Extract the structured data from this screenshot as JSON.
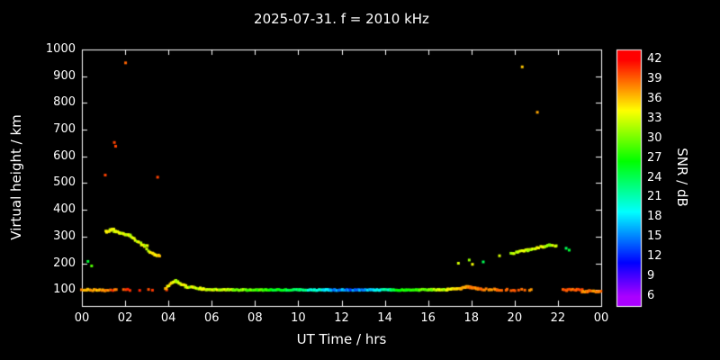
{
  "chart_data": {
    "type": "scatter",
    "title": "2025-07-31. f = 2010 kHz",
    "xlabel": "UT Time / hrs",
    "ylabel": "Virtual height / km",
    "xlim": [
      0,
      24
    ],
    "ylim": [
      40,
      1000
    ],
    "grid": false,
    "background": "#000000",
    "frame_color": "#ffffff",
    "text_color": "#ffffff",
    "xtick_values": [
      0,
      2,
      4,
      6,
      8,
      10,
      12,
      14,
      16,
      18,
      20,
      22,
      24
    ],
    "xtick_labels": [
      "00",
      "02",
      "04",
      "06",
      "08",
      "10",
      "12",
      "14",
      "16",
      "18",
      "20",
      "22",
      "00"
    ],
    "ytick_values": [
      100,
      200,
      300,
      400,
      500,
      600,
      700,
      800,
      900,
      1000
    ],
    "colorbar": {
      "label": "SNR / dB",
      "min": 4.5,
      "max": 43.5,
      "tick_values": [
        6,
        9,
        12,
        15,
        18,
        21,
        24,
        27,
        30,
        33,
        36,
        39,
        42
      ]
    },
    "segment_fields": [
      "t0",
      "t1",
      "h0",
      "h1",
      "snr0",
      "snr1",
      "step_hrs",
      "h_jitter_km",
      "snr_jitter_db"
    ],
    "series_segments": [
      [
        0.0,
        1.05,
        100,
        100,
        37,
        37,
        0.07,
        3,
        2
      ],
      [
        1.05,
        1.6,
        100,
        100,
        39,
        39,
        0.09,
        3,
        2
      ],
      [
        1.9,
        2.25,
        100,
        100,
        40,
        40,
        0.12,
        3,
        1
      ],
      [
        2.6,
        3.8,
        100,
        100,
        40,
        40,
        0.45,
        2,
        1
      ],
      [
        3.85,
        4.15,
        103,
        126,
        35,
        34,
        0.06,
        3,
        2
      ],
      [
        4.15,
        4.35,
        129,
        135,
        34,
        34,
        0.05,
        3,
        2
      ],
      [
        4.35,
        4.8,
        133,
        115,
        33,
        33,
        0.05,
        3,
        2
      ],
      [
        4.8,
        5.6,
        112,
        104,
        33,
        33,
        0.06,
        3,
        2
      ],
      [
        5.6,
        7.0,
        102,
        101,
        34,
        32,
        0.06,
        2,
        2
      ],
      [
        7.0,
        8.5,
        100,
        100,
        31,
        28,
        0.06,
        2,
        2
      ],
      [
        8.5,
        10.0,
        100,
        100,
        27,
        24,
        0.06,
        2,
        2
      ],
      [
        10.0,
        11.3,
        100,
        100,
        23,
        19,
        0.06,
        2,
        2
      ],
      [
        11.3,
        12.8,
        100,
        100,
        17,
        14,
        0.06,
        2,
        2
      ],
      [
        12.8,
        14.3,
        100,
        100,
        16,
        22,
        0.06,
        2,
        2
      ],
      [
        14.3,
        15.6,
        100,
        100,
        24,
        29,
        0.06,
        2,
        2
      ],
      [
        15.6,
        16.9,
        101,
        101,
        30,
        33,
        0.06,
        2,
        2
      ],
      [
        16.9,
        17.55,
        103,
        104,
        35,
        35,
        0.06,
        2,
        2
      ],
      [
        17.55,
        17.85,
        106,
        114,
        37,
        37,
        0.05,
        3,
        1
      ],
      [
        17.85,
        18.3,
        112,
        104,
        38,
        38,
        0.05,
        3,
        1
      ],
      [
        18.3,
        19.2,
        102,
        101,
        38,
        38,
        0.08,
        3,
        1
      ],
      [
        19.2,
        20.3,
        100,
        100,
        39,
        39,
        0.12,
        3,
        1
      ],
      [
        20.5,
        20.8,
        100,
        100,
        38,
        38,
        0.15,
        2,
        1
      ],
      [
        22.25,
        23.1,
        100,
        100,
        39,
        39,
        0.07,
        3,
        1
      ],
      [
        23.1,
        24.0,
        95,
        95,
        38,
        38,
        0.06,
        3,
        1
      ],
      [
        1.1,
        1.5,
        318,
        328,
        34,
        34,
        0.05,
        4,
        2
      ],
      [
        1.5,
        2.25,
        322,
        302,
        33,
        33,
        0.05,
        4,
        2
      ],
      [
        2.25,
        3.0,
        298,
        262,
        33,
        33,
        0.06,
        5,
        2
      ],
      [
        3.0,
        3.3,
        250,
        237,
        34,
        34,
        0.06,
        4,
        2
      ],
      [
        3.32,
        3.6,
        232,
        228,
        35,
        35,
        0.05,
        4,
        2
      ],
      [
        19.85,
        20.6,
        238,
        248,
        33,
        33,
        0.07,
        4,
        2
      ],
      [
        20.6,
        21.6,
        250,
        266,
        33,
        33,
        0.06,
        4,
        2
      ],
      [
        21.6,
        21.95,
        266,
        268,
        32,
        32,
        0.08,
        4,
        2
      ]
    ],
    "point_fields": [
      "t",
      "h",
      "snr"
    ],
    "points": [
      [
        0.28,
        207,
        25
      ],
      [
        0.45,
        190,
        29
      ],
      [
        1.08,
        530,
        40
      ],
      [
        1.5,
        652,
        40
      ],
      [
        1.56,
        638,
        40
      ],
      [
        2.02,
        950,
        39
      ],
      [
        3.5,
        522,
        40
      ],
      [
        17.4,
        200,
        33
      ],
      [
        17.9,
        212,
        31
      ],
      [
        18.05,
        196,
        34
      ],
      [
        18.55,
        205,
        24
      ],
      [
        19.3,
        228,
        33
      ],
      [
        20.35,
        935,
        36
      ],
      [
        21.05,
        765,
        37
      ],
      [
        22.38,
        256,
        24
      ],
      [
        22.52,
        249,
        25
      ]
    ]
  }
}
